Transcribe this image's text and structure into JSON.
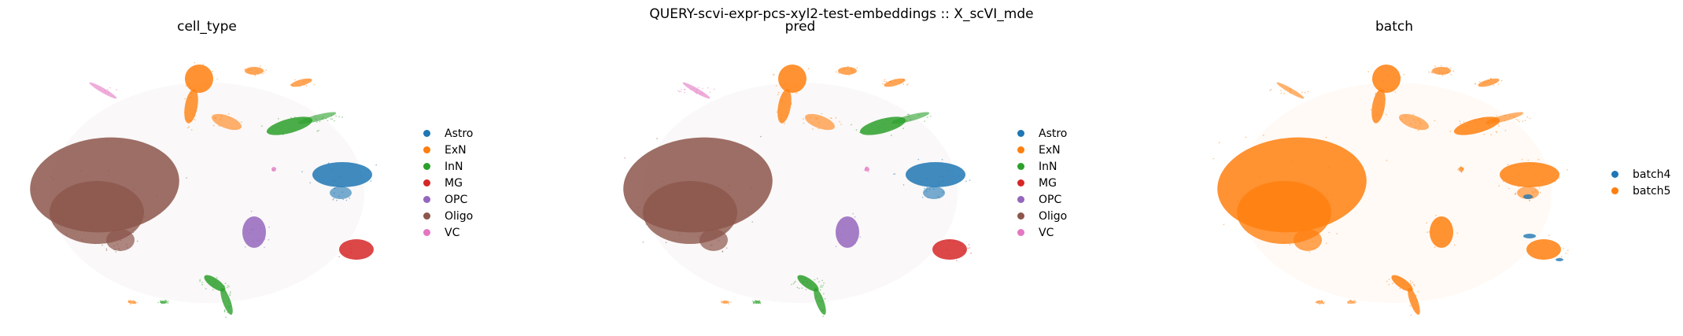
{
  "suptitle": "QUERY-scvi-expr-pcs-xyl2-test-embeddings :: X_scVI_mde",
  "chart_data": [
    {
      "type": "scatter",
      "title": "cell_type",
      "legend": "right",
      "grid": false,
      "series": [
        {
          "name": "Astro",
          "color": "#1f77b4"
        },
        {
          "name": "ExN",
          "color": "#ff7f0e"
        },
        {
          "name": "InN",
          "color": "#2ca02c"
        },
        {
          "name": "MG",
          "color": "#d62728"
        },
        {
          "name": "OPC",
          "color": "#9467bd"
        },
        {
          "name": "Oligo",
          "color": "#8c564b"
        },
        {
          "name": "VC",
          "color": "#e377c2"
        }
      ]
    },
    {
      "type": "scatter",
      "title": "pred",
      "legend": "right",
      "grid": false,
      "series": [
        {
          "name": "Astro",
          "color": "#1f77b4"
        },
        {
          "name": "ExN",
          "color": "#ff7f0e"
        },
        {
          "name": "InN",
          "color": "#2ca02c"
        },
        {
          "name": "MG",
          "color": "#d62728"
        },
        {
          "name": "OPC",
          "color": "#9467bd"
        },
        {
          "name": "Oligo",
          "color": "#8c564b"
        },
        {
          "name": "VC",
          "color": "#e377c2"
        }
      ]
    },
    {
      "type": "scatter",
      "title": "batch",
      "legend": "right",
      "grid": false,
      "series": [
        {
          "name": "batch4",
          "color": "#1f77b4"
        },
        {
          "name": "batch5",
          "color": "#ff7f0e"
        }
      ]
    }
  ]
}
